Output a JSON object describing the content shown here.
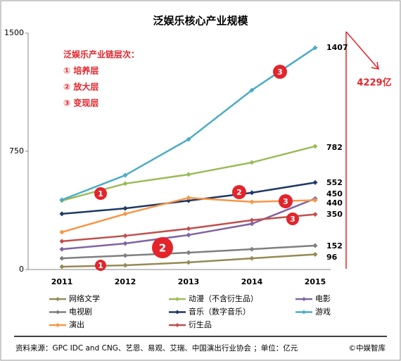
{
  "chart_data": {
    "type": "line",
    "title": "泛娱乐核心产业规模",
    "categories": [
      "2011",
      "2012",
      "2013",
      "2014",
      "2015"
    ],
    "ylim": [
      0,
      1500
    ],
    "yticks": [
      0,
      750,
      1500
    ],
    "series": [
      {
        "name": "网络文学",
        "color": "#948a54",
        "values": [
          18,
          27,
          45,
          71,
          96
        ]
      },
      {
        "name": "动漫（不含衍生品）",
        "color": "#9bbb59",
        "values": [
          437,
          545,
          603,
          679,
          782
        ]
      },
      {
        "name": "电影",
        "color": "#8064a2",
        "values": [
          129,
          165,
          219,
          290,
          450
        ]
      },
      {
        "name": "电视剧",
        "color": "#7f7f7f",
        "values": [
          71,
          89,
          107,
          129,
          152
        ]
      },
      {
        "name": "音乐（数字音乐）",
        "color": "#1f3864",
        "values": [
          353,
          388,
          437,
          487,
          552
        ]
      },
      {
        "name": "游戏",
        "color": "#4bacc6",
        "values": [
          442,
          598,
          826,
          1138,
          1407
        ]
      },
      {
        "name": "演出",
        "color": "#f79646",
        "values": [
          237,
          353,
          455,
          429,
          440
        ]
      },
      {
        "name": "衍生品",
        "color": "#c0504d",
        "values": [
          179,
          214,
          259,
          313,
          350
        ]
      }
    ],
    "legend_title": "泛娱乐产业链层次：",
    "legend_levels": [
      "① 培养层",
      "② 放大层",
      "③ 变现层"
    ],
    "markers": [
      "1",
      "1",
      "2",
      "2",
      "3",
      "3",
      "3"
    ],
    "total_annotation": "4229亿",
    "source": "资料来源：GPC IDC and CNG、艺恩、易观、艾瑞、中国演出行业协会 ；单位：亿元",
    "copyright": "©中娱智库"
  }
}
